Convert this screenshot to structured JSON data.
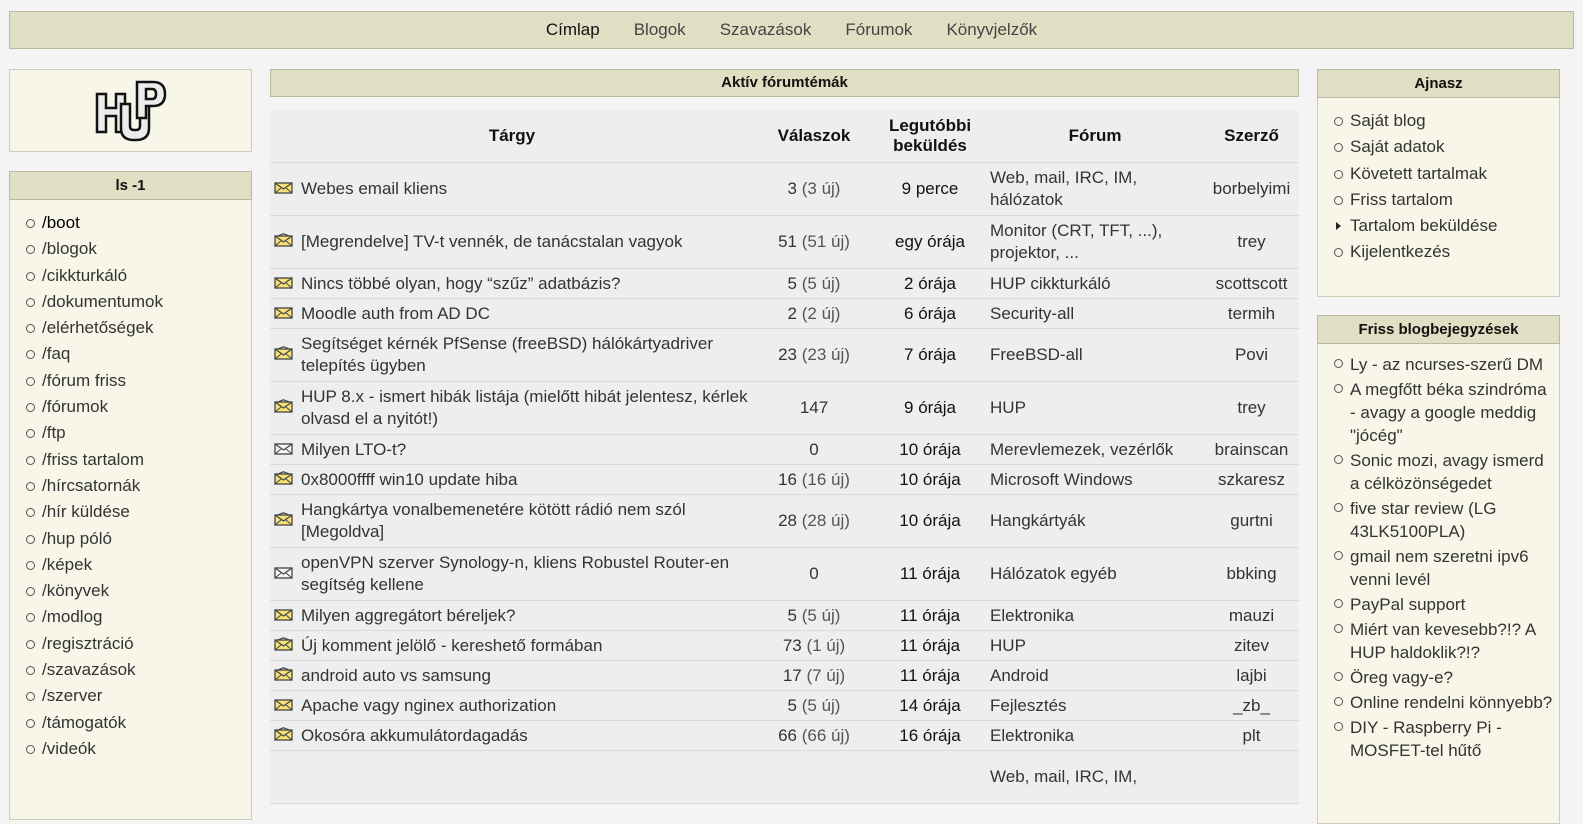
{
  "nav": [
    {
      "label": "Címlap",
      "active": true
    },
    {
      "label": "Blogok",
      "active": false
    },
    {
      "label": "Szavazások",
      "active": false
    },
    {
      "label": "Fórumok",
      "active": false
    },
    {
      "label": "Könyvjelzők",
      "active": false
    }
  ],
  "logo": {
    "icon": "hup-logo"
  },
  "left": {
    "title": "ls -1",
    "items": [
      "/boot",
      "/blogok",
      "/cikkturkáló",
      "/dokumentumok",
      "/elérhetőségek",
      "/faq",
      "/fórum friss",
      "/fórumok",
      "/ftp",
      "/friss tartalom",
      "/hírcsatornák",
      "/hír küldése",
      "/hup póló",
      "/képek",
      "/könyvek",
      "/modlog",
      "/regisztráció",
      "/szavazások",
      "/szerver",
      "/támogatók",
      "/videók"
    ]
  },
  "center": {
    "title": "Aktív fórumtémák",
    "columns": {
      "subject": "Tárgy",
      "replies": "Válaszok",
      "last_line1": "Legutóbbi",
      "last_line2": "beküldés",
      "forum": "Fórum",
      "author": "Szerző"
    },
    "rows": [
      {
        "icon": "envelope-new-icon",
        "subject": "Webes email kliens",
        "replies": "3",
        "new": "(3 új)",
        "last": "9 perce",
        "forum": "Web, mail, IRC, IM, hálózatok",
        "author": "borbelyimi",
        "tall": true
      },
      {
        "icon": "envelope-hot-icon",
        "subject": "[Megrendelve] TV-t vennék, de tanácstalan vagyok",
        "replies": "51",
        "new": "(51 új)",
        "last": "egy órája",
        "forum": "Monitor (CRT, TFT, ...), projektor, ...",
        "author": "trey",
        "tall": true
      },
      {
        "icon": "envelope-new-icon",
        "subject": "Nincs többé olyan, hogy “szűz” adatbázis?",
        "replies": "5",
        "new": "(5 új)",
        "last": "2 órája",
        "forum": "HUP cikkturkáló",
        "author": "scottscott",
        "tall": false
      },
      {
        "icon": "envelope-new-icon",
        "subject": "Moodle auth from AD DC",
        "replies": "2",
        "new": "(2 új)",
        "last": "6 órája",
        "forum": "Security-all",
        "author": "termih",
        "tall": false
      },
      {
        "icon": "envelope-hot-icon",
        "subject": "Segítséget kérnék PfSense (freeBSD) hálókártyadriver telepítés ügyben",
        "replies": "23",
        "new": "(23 új)",
        "last": "7 órája",
        "forum": "FreeBSD-all",
        "author": "Povi",
        "tall": true
      },
      {
        "icon": "envelope-hot-icon",
        "subject": "HUP 8.x - ismert hibák listája (mielőtt hibát jelentesz, kérlek olvasd el a nyitót!)",
        "replies": "147",
        "new": "",
        "last": "9 órája",
        "forum": "HUP",
        "author": "trey",
        "tall": true
      },
      {
        "icon": "envelope-icon",
        "subject": "Milyen LTO-t?",
        "replies": "0",
        "new": "",
        "last": "10 órája",
        "forum": "Merevlemezek, vezérlők",
        "author": "brainscan",
        "tall": false
      },
      {
        "icon": "envelope-hot-icon",
        "subject": "0x8000ffff win10 update hiba",
        "replies": "16",
        "new": "(16 új)",
        "last": "10 órája",
        "forum": "Microsoft Windows",
        "author": "szkaresz",
        "tall": false
      },
      {
        "icon": "envelope-hot-icon",
        "subject": "Hangkártya vonalbemenetére kötött rádió nem szól [Megoldva]",
        "replies": "28",
        "new": "(28 új)",
        "last": "10 órája",
        "forum": "Hangkártyák",
        "author": "gurtni",
        "tall": true
      },
      {
        "icon": "envelope-icon",
        "subject": "openVPN szerver Synology-n, kliens Robustel Router-en segítség kellene",
        "replies": "0",
        "new": "",
        "last": "11 órája",
        "forum": "Hálózatok egyéb",
        "author": "bbking",
        "tall": true
      },
      {
        "icon": "envelope-new-icon",
        "subject": "Milyen aggregátort béreljek?",
        "replies": "5",
        "new": "(5 új)",
        "last": "11 órája",
        "forum": "Elektronika",
        "author": "mauzi",
        "tall": false
      },
      {
        "icon": "envelope-hot-icon",
        "subject": "Új komment jelölő - kereshető formában",
        "replies": "73",
        "new": "(1 új)",
        "last": "11 órája",
        "forum": "HUP",
        "author": "zitev",
        "tall": false
      },
      {
        "icon": "envelope-hot-icon",
        "subject": "android auto vs samsung",
        "replies": "17",
        "new": "(7 új)",
        "last": "11 órája",
        "forum": "Android",
        "author": "lajbi",
        "tall": false
      },
      {
        "icon": "envelope-new-icon",
        "subject": "Apache vagy nginex authorization",
        "replies": "5",
        "new": "(5 új)",
        "last": "14 órája",
        "forum": "Fejlesztés",
        "author": "_zb_",
        "tall": false
      },
      {
        "icon": "envelope-hot-icon",
        "subject": "Okosóra akkumulátordagadás",
        "replies": "66",
        "new": "(66 új)",
        "last": "16 órája",
        "forum": "Elektronika",
        "author": "plt",
        "tall": false
      },
      {
        "icon": "envelope-icon",
        "subject": "",
        "replies": "",
        "new": "",
        "last": "",
        "forum": "Web, mail, IRC, IM,",
        "author": "",
        "tall": true
      }
    ]
  },
  "right": {
    "user_title": "Ajnasz",
    "user_items": [
      {
        "label": "Saját blog",
        "arrow": false
      },
      {
        "label": "Saját adatok",
        "arrow": false
      },
      {
        "label": "Követett tartalmak",
        "arrow": false
      },
      {
        "label": "Friss tartalom",
        "arrow": false
      },
      {
        "label": "Tartalom beküldése",
        "arrow": true
      },
      {
        "label": "Kijelentkezés",
        "arrow": false
      }
    ],
    "blog_title": "Friss blogbejegyzések",
    "blog_items": [
      "Ly - az ncurses-szerű DM",
      "A megfőtt béka szindróma - avagy a google meddig \"jócég\"",
      "Sonic mozi, avagy ismerd a célközönségedet",
      "five star review (LG 43LK5100PLA)",
      "gmail nem szeretni ipv6 venni levél",
      "PayPal support",
      "Miért van kevesebb?!? A HUP haldoklik?!?",
      "Öreg vagy-e?",
      "Online rendelni könnyebb?",
      "DIY - Raspberry Pi - MOSFET-tel hűtő"
    ]
  }
}
